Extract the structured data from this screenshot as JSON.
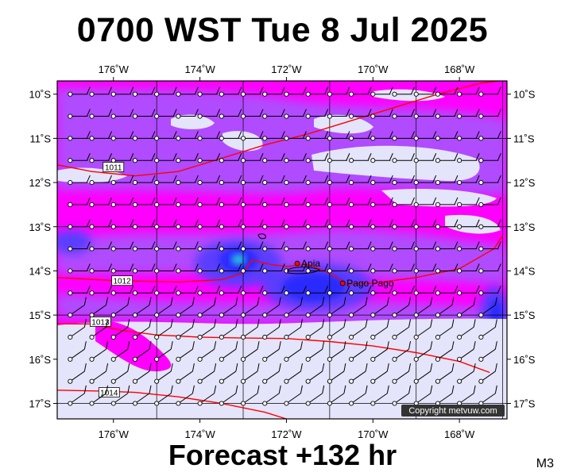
{
  "title": "0700 WST Tue 8 Jul 2025",
  "footer": "Forecast +132 hr",
  "model_code": "M3",
  "copyright": "Copyright metvuw.com",
  "map": {
    "lon_min": -177.3,
    "lon_max": -166.9,
    "lat_min": -17.35,
    "lat_max": -9.7,
    "lon_ticks": [
      -176,
      -174,
      -172,
      -170,
      -168
    ],
    "lon_tick_labels": [
      "176˚W",
      "174˚W",
      "172˚W",
      "170˚W",
      "168˚W"
    ],
    "lat_ticks": [
      -10,
      -11,
      -12,
      -13,
      -14,
      -15,
      -16,
      -17
    ],
    "lat_tick_labels": [
      "10˚S",
      "11˚S",
      "12˚S",
      "13˚S",
      "14˚S",
      "15˚S",
      "16˚S",
      "17˚S"
    ]
  },
  "places": [
    {
      "name": "Apia",
      "lon": -171.75,
      "lat": -13.83
    },
    {
      "name": "Pago Pago",
      "lon": -170.7,
      "lat": -14.28
    }
  ],
  "isobars": [
    {
      "label": "1011",
      "label_lon": -176.0,
      "label_lat": -11.65,
      "points": [
        [
          -177.3,
          -11.6
        ],
        [
          -176.5,
          -11.75
        ],
        [
          -175.5,
          -11.85
        ],
        [
          -174.5,
          -11.75
        ],
        [
          -173.5,
          -11.45
        ],
        [
          -172.5,
          -11.15
        ],
        [
          -171.5,
          -10.9
        ],
        [
          -170.5,
          -10.6
        ],
        [
          -169.5,
          -10.3
        ],
        [
          -168.5,
          -10.0
        ],
        [
          -167.5,
          -9.75
        ],
        [
          -167.1,
          -9.7
        ]
      ]
    },
    {
      "label": "1012",
      "label_lon": -175.8,
      "label_lat": -14.22,
      "points": [
        [
          -177.3,
          -14.15
        ],
        [
          -176.0,
          -14.22
        ],
        [
          -174.5,
          -14.25
        ],
        [
          -173.5,
          -14.2
        ],
        [
          -173.0,
          -14.05
        ],
        [
          -172.8,
          -13.75
        ],
        [
          -172.4,
          -13.85
        ],
        [
          -172.0,
          -13.9
        ],
        [
          -171.5,
          -13.85
        ],
        [
          -171.0,
          -14.05
        ],
        [
          -170.6,
          -14.3
        ],
        [
          -170.0,
          -14.28
        ],
        [
          -169.0,
          -14.15
        ],
        [
          -168.0,
          -13.95
        ],
        [
          -167.2,
          -13.5
        ],
        [
          -167.0,
          -13.2
        ]
      ]
    },
    {
      "label": "1013",
      "label_lon": -176.3,
      "label_lat": -15.15,
      "points": [
        [
          -177.3,
          -15.2
        ],
        [
          -176.5,
          -15.2
        ],
        [
          -175.8,
          -15.35
        ],
        [
          -175.0,
          -15.45
        ],
        [
          -174.0,
          -15.5
        ],
        [
          -173.0,
          -15.52
        ],
        [
          -172.0,
          -15.53
        ],
        [
          -171.0,
          -15.6
        ],
        [
          -170.0,
          -15.7
        ],
        [
          -169.0,
          -15.85
        ],
        [
          -168.0,
          -16.05
        ],
        [
          -167.3,
          -16.3
        ]
      ]
    },
    {
      "label": "1014",
      "label_lon": -176.1,
      "label_lat": -16.75,
      "points": [
        [
          -177.3,
          -16.7
        ],
        [
          -176.3,
          -16.72
        ],
        [
          -175.5,
          -16.75
        ],
        [
          -174.5,
          -16.85
        ],
        [
          -173.5,
          -17.0
        ],
        [
          -172.5,
          -17.2
        ],
        [
          -172.0,
          -17.35
        ]
      ]
    }
  ],
  "legend": {
    "colors": {
      "very_light": "#e4e4fa",
      "violet": "#b04cff",
      "magenta": "#ff00ff",
      "blue": "#2b2bff",
      "cyan": "#29b7e0",
      "isobar": "#ff0000",
      "barb": "#000000"
    }
  }
}
